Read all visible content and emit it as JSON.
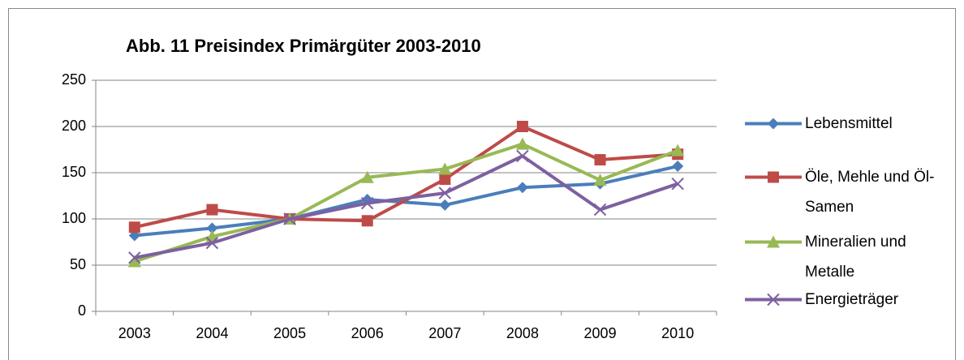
{
  "chart_data": {
    "type": "line",
    "title": "Abb. 11 Preisindex Primärgüter 2003-2010",
    "categories": [
      "2003",
      "2004",
      "2005",
      "2006",
      "2007",
      "2008",
      "2009",
      "2010"
    ],
    "series": [
      {
        "name": "Lebensmittel",
        "color": "#4a7ebb",
        "marker": "diamond",
        "values": [
          82,
          90,
          100,
          121,
          115,
          134,
          138,
          157
        ]
      },
      {
        "name": "Öle, Mehle und Öl-Samen",
        "color": "#be4b48",
        "marker": "square",
        "values": [
          91,
          110,
          100,
          98,
          143,
          200,
          164,
          170
        ]
      },
      {
        "name": "Mineralien und Metalle",
        "color": "#98b954",
        "marker": "triangle",
        "values": [
          54,
          81,
          100,
          145,
          154,
          181,
          142,
          174
        ]
      },
      {
        "name": "Energieträger",
        "color": "#7d60a0",
        "marker": "x",
        "values": [
          58,
          74,
          100,
          117,
          128,
          168,
          110,
          138
        ]
      }
    ],
    "ylim": [
      0,
      250
    ],
    "yticks": [
      0,
      50,
      100,
      150,
      200,
      250
    ],
    "grid": true,
    "legend": "right"
  }
}
